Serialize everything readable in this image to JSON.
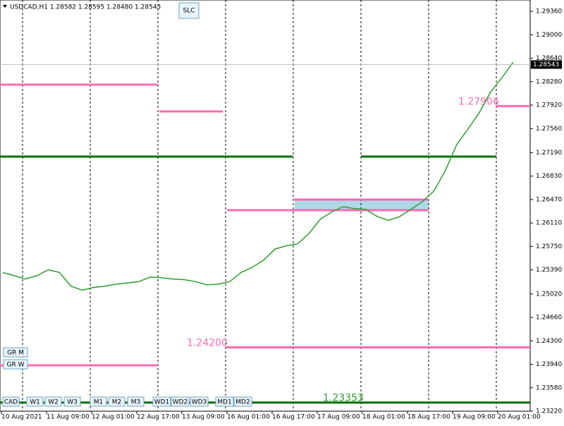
{
  "chart_data": {
    "type": "line",
    "title": "USDCAD,H1 1.28582 1.28595 1.28480 1.28543",
    "color": "#2e9e2e",
    "values": [
      1.2535,
      1.253,
      1.2525,
      1.253,
      1.2539,
      1.2535,
      1.2514,
      1.2508,
      1.2512,
      1.2514,
      1.2517,
      1.2519,
      1.2521,
      1.2528,
      1.2527,
      1.2525,
      1.2524,
      1.2521,
      1.2516,
      1.2517,
      1.2521,
      1.2535,
      1.2543,
      1.2554,
      1.2571,
      1.2576,
      1.2579,
      1.2595,
      1.2617,
      1.2628,
      1.2636,
      1.2633,
      1.2632,
      1.2621,
      1.2615,
      1.2621,
      1.2632,
      1.2644,
      1.266,
      1.2691,
      1.2731,
      1.2755,
      1.278,
      1.2812,
      1.2834,
      1.2858
    ],
    "ylim": [
      1.2322,
      1.29534
    ],
    "yticks": [
      {
        "value": 1.2936,
        "label": "1.29360"
      },
      {
        "value": 1.29,
        "label": "1.29000"
      },
      {
        "value": 1.2864,
        "label": "1.28640"
      },
      {
        "value": 1.2828,
        "label": "1.28280"
      },
      {
        "value": 1.2792,
        "label": "1.27920"
      },
      {
        "value": 1.2756,
        "label": "1.27560"
      },
      {
        "value": 1.2719,
        "label": "1.27190"
      },
      {
        "value": 1.2683,
        "label": "1.26830"
      },
      {
        "value": 1.2647,
        "label": "1.26470"
      },
      {
        "value": 1.2611,
        "label": "1.26110"
      },
      {
        "value": 1.2575,
        "label": "1.25750"
      },
      {
        "value": 1.2539,
        "label": "1.25390"
      },
      {
        "value": 1.2502,
        "label": "1.25020"
      },
      {
        "value": 1.2466,
        "label": "1.24660"
      },
      {
        "value": 1.243,
        "label": "1.24300"
      },
      {
        "value": 1.2394,
        "label": "1.23940"
      },
      {
        "value": 1.2358,
        "label": "1.23580"
      },
      {
        "value": 1.2322,
        "label": "1.23220"
      }
    ],
    "time_labels": [
      "10 Aug 2021",
      "11 Aug 09:00",
      "12 Aug 01:00",
      "12 Aug 17:00",
      "13 Aug 09:00",
      "16 Aug 01:00",
      "16 Aug 17:00",
      "17 Aug 09:00",
      "18 Aug 01:00",
      "18 Aug 17:00",
      "19 Aug 09:00",
      "20 Aug 01:00"
    ],
    "current_price": {
      "value": 1.28543,
      "label": "1.28543"
    },
    "levels": [
      {
        "value": 1.242,
        "label": "1.24200",
        "color": "#ff69b4"
      },
      {
        "value": 1.27906,
        "label": "1.27906",
        "color": "#ff69b4"
      },
      {
        "value": 1.23353,
        "label": "1.23353",
        "color": "#2e9e2e"
      }
    ],
    "buttons": {
      "top": "SLC",
      "bottom": [
        "CAD",
        "W1",
        "W2",
        "W3",
        "M1",
        "M2",
        "M3",
        "WD1",
        "WD2",
        "WD3",
        "MD1",
        "MD2"
      ],
      "left": [
        "GR M",
        "GR W"
      ]
    }
  }
}
